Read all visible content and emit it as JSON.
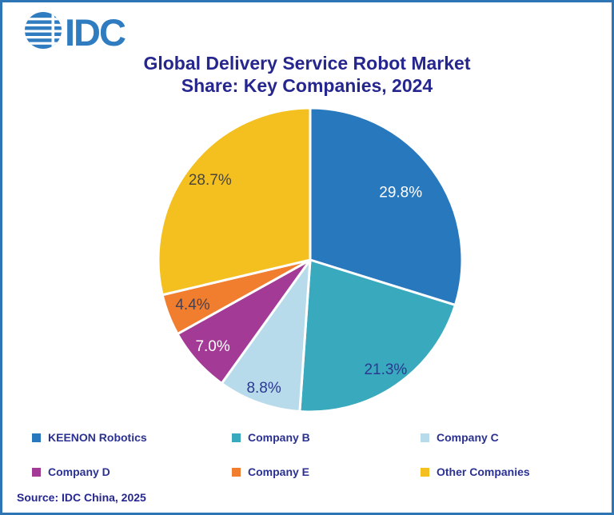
{
  "window": {
    "background": "#FFFFFF",
    "border_color": "#2E75B6"
  },
  "logo": {
    "text": "IDC",
    "color": "#2F7CC0",
    "icon": "idc-globe-icon"
  },
  "title": {
    "line1": "Global Delivery Service Robot Market",
    "line2": "Share: Key Companies, 2024",
    "color": "#26268F"
  },
  "chart_data": {
    "type": "pie",
    "title": "Global Delivery Service Robot Market Share: Key Companies, 2024",
    "start_angle_deg": 0,
    "direction": "clockwise",
    "units": "percent",
    "slices": [
      {
        "label": "KEENON Robotics",
        "value": 29.8,
        "display": "29.8%",
        "color": "#2878BE",
        "label_color": "#FFFFFF",
        "label_r": 0.74
      },
      {
        "label": "Company B",
        "value": 21.3,
        "display": "21.3%",
        "color": "#39A9BE",
        "label_color": "#2B3990",
        "label_r": 0.88
      },
      {
        "label": "Company C",
        "value": 8.8,
        "display": "8.8%",
        "color": "#B7DBEA",
        "label_color": "#2B3990",
        "label_r": 0.9
      },
      {
        "label": "Company D",
        "value": 7.0,
        "display": "7.0%",
        "color": "#A33A96",
        "label_color": "#FFFFFF",
        "label_r": 0.86
      },
      {
        "label": "Company E",
        "value": 4.4,
        "display": "4.4%",
        "color": "#F07E2E",
        "label_color": "#4A3F4C",
        "label_r": 0.83
      },
      {
        "label": "Other Companies",
        "value": 28.7,
        "display": "28.7%",
        "color": "#F3C01F",
        "label_color": "#4C4637",
        "label_r": 0.84
      }
    ],
    "legend_position": "bottom",
    "legend": [
      "KEENON Robotics",
      "Company B",
      "Company C",
      "Company D",
      "Company E",
      "Other Companies"
    ],
    "slice_separator_color": "#FFFFFF"
  },
  "source": {
    "text": "Source: IDC China, 2025"
  }
}
